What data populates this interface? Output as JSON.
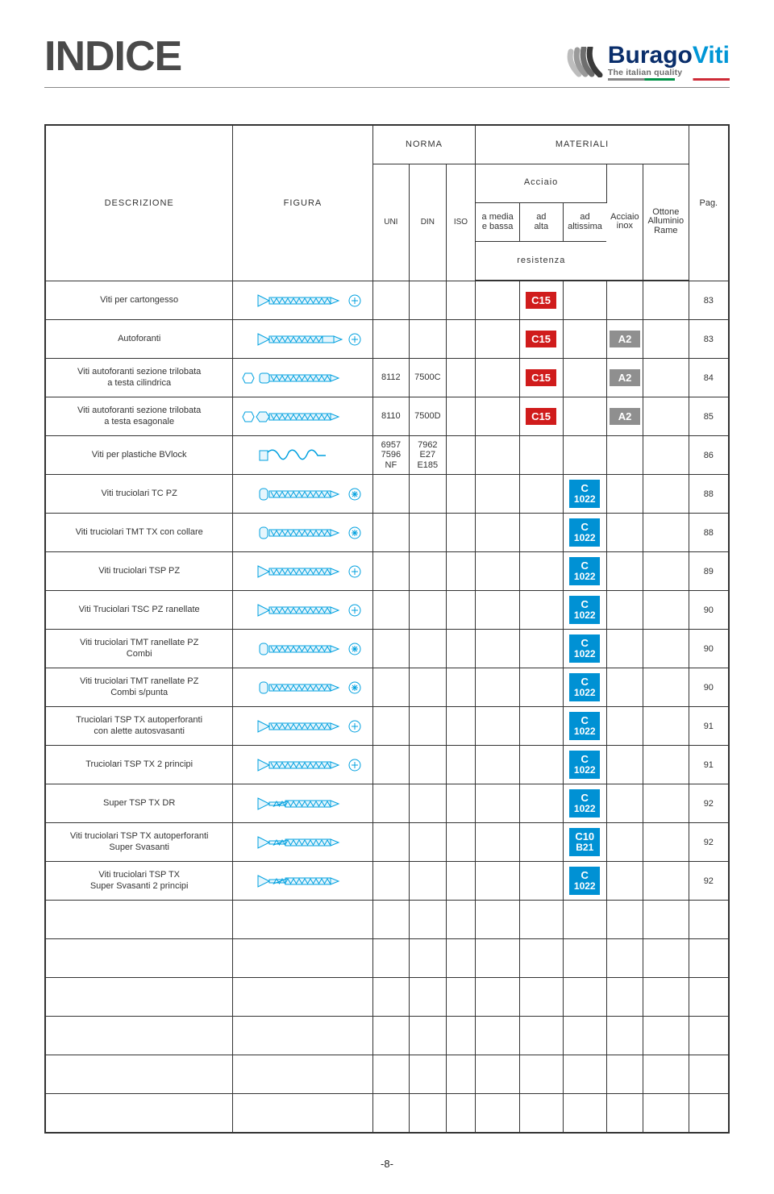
{
  "page": {
    "title": "INDICE",
    "page_number": "-8-"
  },
  "logo": {
    "brand_a": "Burago",
    "brand_b": "Viti",
    "tagline": "The italian quality",
    "color_a": "#0a2e6b",
    "color_b": "#0096d6"
  },
  "colors": {
    "border": "#333333",
    "badge_red": "#d01c1c",
    "badge_grey": "#8f8f8f",
    "badge_blue": "#0091d4",
    "figure_stroke": "#00a0df",
    "figure_fill": "#e6f6fd"
  },
  "headers": {
    "descrizione": "DESCRIZIONE",
    "figura": "FIGURA",
    "norma": "NORMA",
    "materiali": "MATERIALI",
    "pag": "Pag.",
    "uni": "UNI",
    "din": "DIN",
    "iso": "ISO",
    "acciaio": "Acciaio",
    "resistenza": "resistenza",
    "mat1": "a media\ne bassa",
    "mat2": "ad\nalta",
    "mat3": "ad\naltissima",
    "mat4": "Acciaio\ninox",
    "mat5": "Ottone\nAlluminio\nRame"
  },
  "rows": [
    {
      "desc": "Viti per cartongesso",
      "fig": "screw_flat",
      "mat2": {
        "text": "C15",
        "color": "red"
      },
      "pag": "83"
    },
    {
      "desc": "Autoforanti",
      "fig": "screw_drill",
      "mat2": {
        "text": "C15",
        "color": "red"
      },
      "mat4": {
        "text": "A2",
        "color": "grey"
      },
      "pag": "83"
    },
    {
      "desc": "Viti autoforanti sezione trilobata\na testa cilindrica",
      "fig": "screw_pan_hex",
      "uni": "8112",
      "din": "7500C",
      "mat2": {
        "text": "C15",
        "color": "red"
      },
      "mat4": {
        "text": "A2",
        "color": "grey"
      },
      "pag": "84"
    },
    {
      "desc": "Viti autoforanti sezione trilobata\na testa esagonale",
      "fig": "screw_hex_hex",
      "uni": "8110",
      "din": "7500D",
      "mat2": {
        "text": "C15",
        "color": "red"
      },
      "mat4": {
        "text": "A2",
        "color": "grey"
      },
      "pag": "85"
    },
    {
      "desc": "Viti per plastiche BVlock",
      "fig": "screw_bvlock",
      "uni": "6957\n7596\nNF",
      "din": "7962\nE27\nE185",
      "pag": "86"
    },
    {
      "desc": "Viti truciolari TC PZ",
      "fig": "screw_tc",
      "mat3": {
        "text": "C\n1022",
        "color": "blue"
      },
      "pag": "88"
    },
    {
      "desc": "Viti truciolari TMT TX con collare",
      "fig": "screw_tmt_collar",
      "mat3": {
        "text": "C\n1022",
        "color": "blue"
      },
      "pag": "88"
    },
    {
      "desc": "Viti truciolari TSP PZ",
      "fig": "screw_tsp",
      "mat3": {
        "text": "C\n1022",
        "color": "blue"
      },
      "pag": "89"
    },
    {
      "desc": "Viti Truciolari TSC PZ ranellate",
      "fig": "screw_tsc_ran",
      "mat3": {
        "text": "C\n1022",
        "color": "blue"
      },
      "pag": "90"
    },
    {
      "desc": "Viti truciolari TMT ranellate PZ\nCombi",
      "fig": "screw_tmt_ran",
      "mat3": {
        "text": "C\n1022",
        "color": "blue"
      },
      "pag": "90"
    },
    {
      "desc": "Viti truciolari TMT ranellate PZ\nCombi s/punta",
      "fig": "screw_tmt_ran2",
      "mat3": {
        "text": "C\n1022",
        "color": "blue"
      },
      "pag": "90"
    },
    {
      "desc": "Truciolari TSP TX autoperforanti\ncon alette autosvasanti",
      "fig": "screw_tsp_tx_wing",
      "mat3": {
        "text": "C\n1022",
        "color": "blue"
      },
      "pag": "91"
    },
    {
      "desc": "Truciolari TSP TX 2 principi",
      "fig": "screw_tsp_tx2",
      "mat3": {
        "text": "C\n1022",
        "color": "blue"
      },
      "pag": "91"
    },
    {
      "desc": "Super TSP TX DR",
      "fig": "screw_super_dr",
      "mat3": {
        "text": "C\n1022",
        "color": "blue"
      },
      "pag": "92"
    },
    {
      "desc": "Viti truciolari TSP TX autoperforanti\nSuper Svasanti",
      "fig": "screw_super_sv",
      "mat3": {
        "text": "C10\nB21",
        "color": "blue"
      },
      "pag": "92"
    },
    {
      "desc": "Viti truciolari TSP TX\nSuper Svasanti 2 principi",
      "fig": "screw_super_sv2",
      "mat3": {
        "text": "C\n1022",
        "color": "blue"
      },
      "pag": "92"
    }
  ],
  "empty_rows": 6,
  "figure_svg": {
    "width": 150,
    "height": 22
  }
}
